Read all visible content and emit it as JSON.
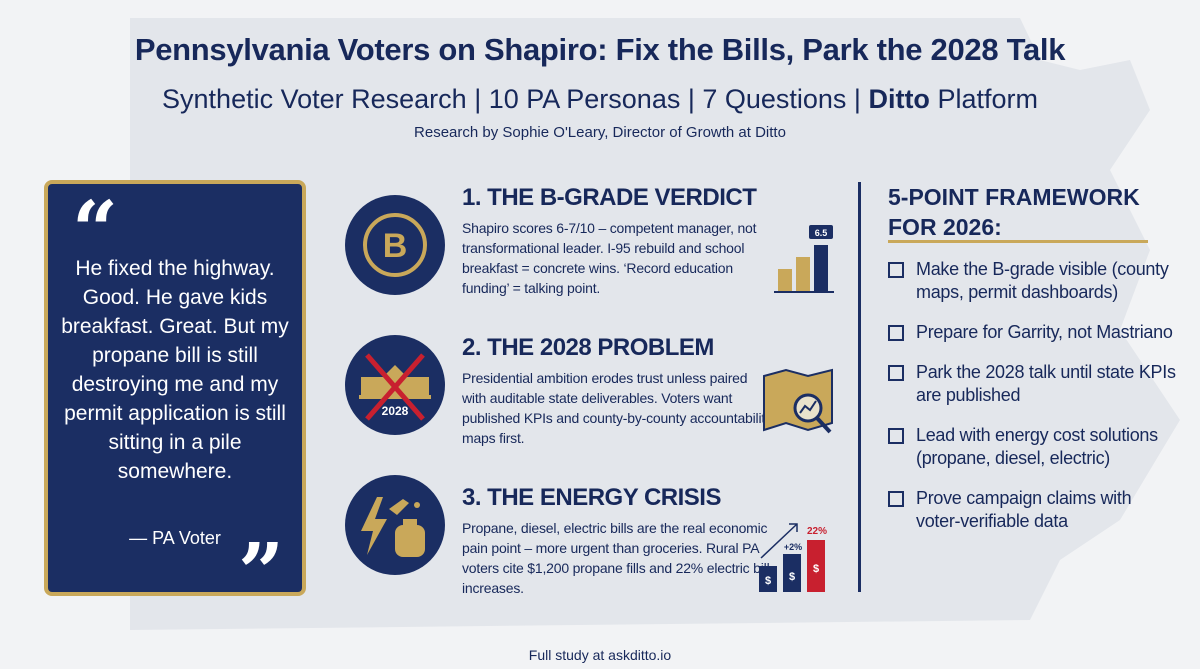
{
  "header": {
    "title": "Pennsylvania Voters on Shapiro: Fix the Bills, Park the 2028 Talk",
    "subtitle_prefix": "Synthetic Voter Research | 10 PA Personas | 7 Questions | ",
    "subtitle_brand": "Ditto",
    "subtitle_suffix": " Platform",
    "byline": "Research by Sophie O'Leary, Director of Growth at Ditto"
  },
  "quote": {
    "text": "He fixed the highway. Good. He gave kids breakfast. Great. But my propane bill is still destroying me and my permit application is still sitting in a pile somewhere.",
    "attribution": "— PA Voter"
  },
  "sections": [
    {
      "heading": "1. THE B-GRADE VERDICT",
      "body": "Shapiro scores 6-7/10 – competent manager, not transformational leader. I-95 rebuild and school breakfast = concrete wins. ‘Record education funding’ = talking point.",
      "icon": "b-grade-badge-icon",
      "badge": "6.5"
    },
    {
      "heading": "2. THE 2028 PROBLEM",
      "body": "Presidential ambition erodes trust unless paired with auditable state deliverables. Voters want published KPIs and county-by-county accountability maps first.",
      "icon": "crossed-white-house-icon",
      "badge": "2028"
    },
    {
      "heading": "3. THE ENERGY CRISIS",
      "body": "Propane, diesel, electric bills are the real economic pain point – more urgent than groceries. Rural PA voters cite $1,200 propane fills and 22% electric bill increases.",
      "icon": "energy-fuel-icon",
      "label_small": "+2%",
      "label_big": "22%"
    }
  ],
  "framework": {
    "title": "5-POINT FRAMEWORK FOR 2026:",
    "items": [
      "Make the B-grade visible (county maps, permit dashboards)",
      "Prepare for Garrity, not Mastriano",
      "Park the 2028 talk until state KPIs are published",
      "Lead with energy cost solutions (propane, diesel, electric)",
      "Prove campaign claims with voter-verifiable data"
    ]
  },
  "footer": "Full study at askditto.io",
  "colors": {
    "navy": "#1b2e63",
    "gold": "#c9a85a",
    "red": "#c8202f",
    "background": "#f2f3f5"
  }
}
